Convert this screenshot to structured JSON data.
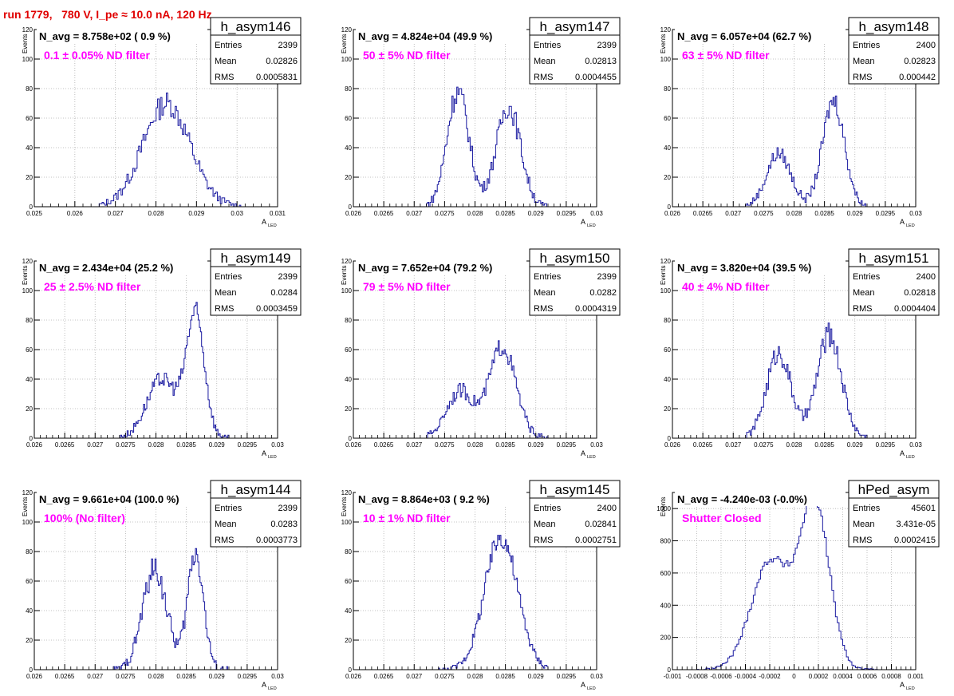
{
  "page": {
    "run_title": "run 1779,   780 V, I_pe ≈ 10.0 nA, 120 Hz"
  },
  "colors": {
    "histogram": "#1a1aa0",
    "filter_label": "#ff00ff",
    "run_title": "#e00000",
    "grid": "#b0b0b0"
  },
  "stats_labels": {
    "entries": "Entries",
    "mean": "Mean",
    "rms": "RMS"
  },
  "axis_labels": {
    "x": "A",
    "x_sub": "LED",
    "y": "Events"
  },
  "chart_data": [
    {
      "type": "histogram",
      "name": "h_asym146",
      "navg": "N_avg = 8.758e+02 ( 0.9 %)",
      "filter": "0.1 ± 0.05% ND filter",
      "entries": "2399",
      "mean": "0.02826",
      "rms": "0.0005831",
      "xlim": [
        0.025,
        0.031
      ],
      "ylim": [
        0,
        120
      ],
      "xticks": [
        0.025,
        0.026,
        0.027,
        0.028,
        0.029,
        0.03,
        0.031
      ],
      "xtick_labels": [
        "0.025",
        "0.026",
        "0.027",
        "0.028",
        "0.029",
        "0.03",
        "0.031"
      ],
      "yticks": [
        0,
        20,
        40,
        60,
        80,
        100,
        120
      ],
      "ytick_labels": [
        "0",
        "20",
        "40",
        "60",
        "80",
        "100",
        "120"
      ],
      "peaks": [
        [
          0.02826,
          0.00058,
          70
        ]
      ],
      "noise": 8,
      "xmin": 0.0266,
      "xmax": 0.0302,
      "bins": 100,
      "grid": true
    },
    {
      "type": "histogram",
      "name": "h_asym147",
      "navg": "N_avg = 4.824e+04 (49.9 %)",
      "filter": "50 ± 5% ND filter",
      "entries": "2399",
      "mean": "0.02813",
      "rms": "0.0004455",
      "xlim": [
        0.026,
        0.03
      ],
      "ylim": [
        0,
        120
      ],
      "xticks": [
        0.026,
        0.0265,
        0.027,
        0.0275,
        0.028,
        0.0285,
        0.029,
        0.0295,
        0.03
      ],
      "xtick_labels": [
        "0.026",
        "0.0265",
        "0.027",
        "0.0275",
        "0.028",
        "0.0285",
        "0.029",
        "0.0295",
        "0.03"
      ],
      "yticks": [
        0,
        20,
        40,
        60,
        80,
        100,
        120
      ],
      "ytick_labels": [
        "0",
        "20",
        "40",
        "60",
        "80",
        "100",
        "120"
      ],
      "peaks": [
        [
          0.02772,
          0.00018,
          78
        ],
        [
          0.02855,
          0.0002,
          68
        ]
      ],
      "noise": 8,
      "xmin": 0.0272,
      "xmax": 0.0292,
      "bins": 100,
      "grid": true
    },
    {
      "type": "histogram",
      "name": "h_asym148",
      "navg": "N_avg = 6.057e+04 (62.7 %)",
      "filter": "63 ± 5% ND filter",
      "entries": "2400",
      "mean": "0.02823",
      "rms": "0.000442",
      "xlim": [
        0.026,
        0.03
      ],
      "ylim": [
        0,
        120
      ],
      "xticks": [
        0.026,
        0.0265,
        0.027,
        0.0275,
        0.028,
        0.0285,
        0.029,
        0.0295,
        0.03
      ],
      "xtick_labels": [
        "0.026",
        "0.0265",
        "0.027",
        "0.0275",
        "0.028",
        "0.0285",
        "0.029",
        "0.0295",
        "0.03"
      ],
      "yticks": [
        0,
        20,
        40,
        60,
        80,
        100,
        120
      ],
      "ytick_labels": [
        "0",
        "20",
        "40",
        "60",
        "80",
        "100",
        "120"
      ],
      "peaks": [
        [
          0.02775,
          0.0002,
          36
        ],
        [
          0.02865,
          0.00018,
          72
        ]
      ],
      "noise": 7,
      "xmin": 0.0272,
      "xmax": 0.0292,
      "bins": 100,
      "grid": true
    },
    {
      "type": "histogram",
      "name": "h_asym149",
      "navg": "N_avg = 2.434e+04 (25.2 %)",
      "filter": "25 ± 2.5% ND filter",
      "entries": "2399",
      "mean": "0.0284",
      "rms": "0.0003459",
      "xlim": [
        0.026,
        0.03
      ],
      "ylim": [
        0,
        120
      ],
      "xticks": [
        0.026,
        0.0265,
        0.027,
        0.0275,
        0.028,
        0.0285,
        0.029,
        0.0295,
        0.03
      ],
      "xtick_labels": [
        "0.026",
        "0.0265",
        "0.027",
        "0.0275",
        "0.028",
        "0.0285",
        "0.029",
        "0.0295",
        "0.03"
      ],
      "yticks": [
        0,
        20,
        40,
        60,
        80,
        100,
        120
      ],
      "ytick_labels": [
        "0",
        "20",
        "40",
        "60",
        "80",
        "100",
        "120"
      ],
      "peaks": [
        [
          0.0281,
          0.00025,
          40
        ],
        [
          0.02865,
          0.00015,
          82
        ]
      ],
      "noise": 7,
      "xmin": 0.0274,
      "xmax": 0.0292,
      "bins": 100,
      "grid": true
    },
    {
      "type": "histogram",
      "name": "h_asym150",
      "navg": "N_avg = 7.652e+04 (79.2 %)",
      "filter": "79 ± 5% ND filter",
      "entries": "2399",
      "mean": "0.0282",
      "rms": "0.0004319",
      "xlim": [
        0.026,
        0.03
      ],
      "ylim": [
        0,
        120
      ],
      "xticks": [
        0.026,
        0.0265,
        0.027,
        0.0275,
        0.028,
        0.0285,
        0.029,
        0.0295,
        0.03
      ],
      "xtick_labels": [
        "0.026",
        "0.0265",
        "0.027",
        "0.0275",
        "0.028",
        "0.0285",
        "0.029",
        "0.0295",
        "0.03"
      ],
      "yticks": [
        0,
        20,
        40,
        60,
        80,
        100,
        120
      ],
      "ytick_labels": [
        "0",
        "20",
        "40",
        "60",
        "80",
        "100",
        "120"
      ],
      "peaks": [
        [
          0.02775,
          0.00022,
          32
        ],
        [
          0.02845,
          0.00022,
          62
        ]
      ],
      "noise": 7,
      "xmin": 0.0272,
      "xmax": 0.0292,
      "bins": 100,
      "grid": true
    },
    {
      "type": "histogram",
      "name": "h_asym151",
      "navg": "N_avg = 3.820e+04 (39.5 %)",
      "filter": "40 ± 4% ND filter",
      "entries": "2400",
      "mean": "0.02818",
      "rms": "0.0004404",
      "xlim": [
        0.026,
        0.03
      ],
      "ylim": [
        0,
        120
      ],
      "xticks": [
        0.026,
        0.0265,
        0.027,
        0.0275,
        0.028,
        0.0285,
        0.029,
        0.0295,
        0.03
      ],
      "xtick_labels": [
        "0.026",
        "0.0265",
        "0.027",
        "0.0275",
        "0.028",
        "0.0285",
        "0.029",
        "0.0295",
        "0.03"
      ],
      "yticks": [
        0,
        20,
        40,
        60,
        80,
        100,
        120
      ],
      "ytick_labels": [
        "0",
        "20",
        "40",
        "60",
        "80",
        "100",
        "120"
      ],
      "peaks": [
        [
          0.02775,
          0.0002,
          58
        ],
        [
          0.02858,
          0.0002,
          70
        ]
      ],
      "noise": 8,
      "xmin": 0.0272,
      "xmax": 0.0292,
      "bins": 100,
      "grid": true
    },
    {
      "type": "histogram",
      "name": "h_asym144",
      "navg": "N_avg = 9.661e+04 (100.0 %)",
      "filter": "100% (No filter)",
      "entries": "2399",
      "mean": "0.0283",
      "rms": "0.0003773",
      "xlim": [
        0.026,
        0.03
      ],
      "ylim": [
        0,
        120
      ],
      "xticks": [
        0.026,
        0.0265,
        0.027,
        0.0275,
        0.028,
        0.0285,
        0.029,
        0.0295,
        0.03
      ],
      "xtick_labels": [
        "0.026",
        "0.0265",
        "0.027",
        "0.0275",
        "0.028",
        "0.0285",
        "0.029",
        "0.0295",
        "0.03"
      ],
      "yticks": [
        0,
        20,
        40,
        60,
        80,
        100,
        120
      ],
      "ytick_labels": [
        "0",
        "20",
        "40",
        "60",
        "80",
        "100",
        "120"
      ],
      "peaks": [
        [
          0.02798,
          0.0002,
          68
        ],
        [
          0.02865,
          0.00013,
          80
        ]
      ],
      "noise": 9,
      "xmin": 0.0273,
      "xmax": 0.0292,
      "bins": 100,
      "grid": true
    },
    {
      "type": "histogram",
      "name": "h_asym145",
      "navg": "N_avg = 8.864e+03 ( 9.2 %)",
      "filter": "10 ± 1% ND filter",
      "entries": "2400",
      "mean": "0.02841",
      "rms": "0.0002751",
      "xlim": [
        0.026,
        0.03
      ],
      "ylim": [
        0,
        120
      ],
      "xticks": [
        0.026,
        0.0265,
        0.027,
        0.0275,
        0.028,
        0.0285,
        0.029,
        0.0295,
        0.03
      ],
      "xtick_labels": [
        "0.026",
        "0.0265",
        "0.027",
        "0.0275",
        "0.028",
        "0.0285",
        "0.029",
        "0.0295",
        "0.03"
      ],
      "yticks": [
        0,
        20,
        40,
        60,
        80,
        100,
        120
      ],
      "ytick_labels": [
        "0",
        "20",
        "40",
        "60",
        "80",
        "100",
        "120"
      ],
      "peaks": [
        [
          0.02843,
          0.00027,
          90
        ]
      ],
      "noise": 7,
      "xmin": 0.0274,
      "xmax": 0.0292,
      "bins": 100,
      "grid": true
    },
    {
      "type": "histogram",
      "name": "hPed_asym",
      "navg": "N_avg = -4.240e-03 (-0.0%)",
      "filter": "Shutter Closed",
      "entries": "45601",
      "mean": "3.431e-05",
      "rms": "0.0002415",
      "xlim": [
        -0.001,
        0.001
      ],
      "ylim": [
        0,
        1100
      ],
      "xticks": [
        -0.001,
        -0.0008,
        -0.0006,
        -0.0004,
        -0.0002,
        0,
        0.0002,
        0.0004,
        0.0006,
        0.0008,
        0.001
      ],
      "xtick_labels": [
        "-0.001",
        "-0.0008",
        "-0.0006",
        "-0.0004",
        "-0.0002",
        "0",
        "0.0002",
        "0.0004",
        "0.0006",
        "0.0008",
        "0.001"
      ],
      "yticks": [
        0,
        200,
        400,
        600,
        800,
        1000
      ],
      "ytick_labels": [
        "0",
        "200",
        "400",
        "600",
        "800",
        "1000"
      ],
      "peaks": [
        [
          -0.00019,
          0.00016,
          680
        ],
        [
          0.00017,
          0.00012,
          1020
        ]
      ],
      "noise": 25,
      "xmin": -0.0008,
      "xmax": 0.0007,
      "bins": 100,
      "grid": true
    }
  ]
}
